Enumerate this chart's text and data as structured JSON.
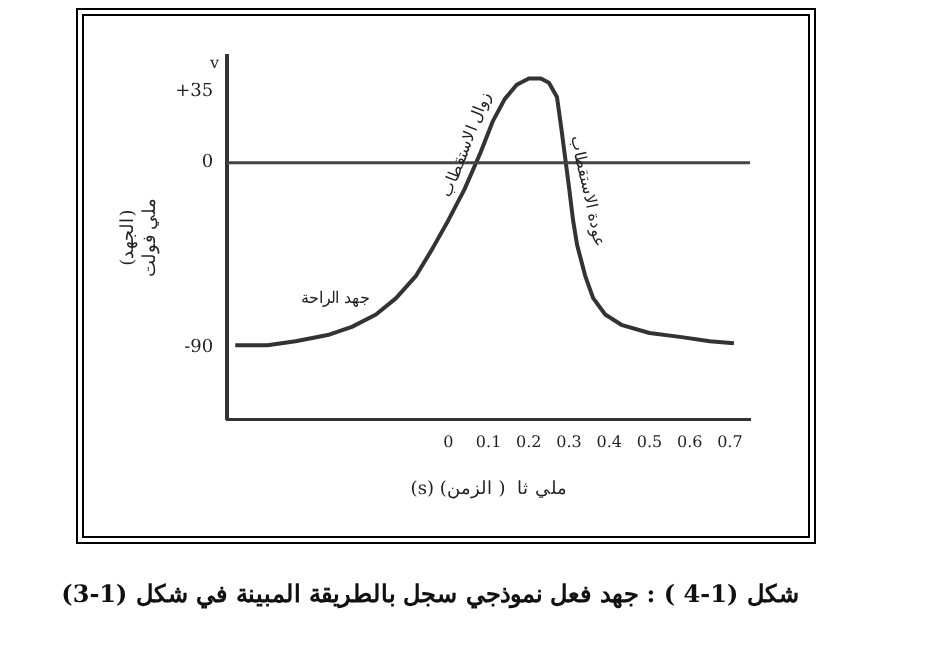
{
  "chart_data": {
    "type": "line",
    "title": "شكل  (1-4 ) : جهد فعل نموذجي سجل بالطريقة المبينة في شكل  (1-3)",
    "xlabel": "(s) ملي ثا  ( الزمن)",
    "ylabel": "(الجهد)\nملي فولت",
    "annotations": [
      "v",
      {
        "text": "زوال الاستقطاب",
        "x": 0.08,
        "y": 5
      },
      {
        "text": "عودة الاستقطاب",
        "x": 0.3,
        "y": -12
      },
      {
        "text": "جهد الراحة",
        "x": -0.24,
        "y": -80
      }
    ],
    "series": [
      {
        "color": "#333333",
        "x": [
          -0.53,
          -0.45,
          -0.38,
          -0.3,
          -0.24,
          -0.18,
          -0.13,
          -0.08,
          -0.04,
          0.0,
          0.04,
          0.08,
          0.11,
          0.14,
          0.17,
          0.2,
          0.23,
          0.25,
          0.27,
          0.28,
          0.29,
          0.3,
          0.31,
          0.32,
          0.34,
          0.36,
          0.39,
          0.43,
          0.5,
          0.58,
          0.65,
          0.71
        ],
        "values": [
          -89,
          -89,
          -87,
          -84,
          -80,
          -74,
          -66,
          -55,
          -42,
          -28,
          -13,
          5,
          20,
          31,
          38,
          41,
          41,
          39,
          32,
          18,
          3,
          -12,
          -28,
          -40,
          -55,
          -66,
          -74,
          -79,
          -83,
          -85,
          -87,
          -88
        ]
      }
    ],
    "xlim": [
      -0.55,
      0.75
    ],
    "xticks": [
      0,
      0.1,
      0.2,
      0.3,
      0.4,
      0.5,
      0.6,
      0.7
    ],
    "ylim": [
      -125,
      52
    ],
    "yticks": [
      -90,
      0,
      {
        "value": 35,
        "label": "+35"
      }
    ],
    "ref_lines": [
      {
        "axis": "y",
        "value": 0,
        "color": "#444444"
      }
    ],
    "grid": false,
    "legend": false,
    "marker": "none",
    "line_style": "solid"
  }
}
